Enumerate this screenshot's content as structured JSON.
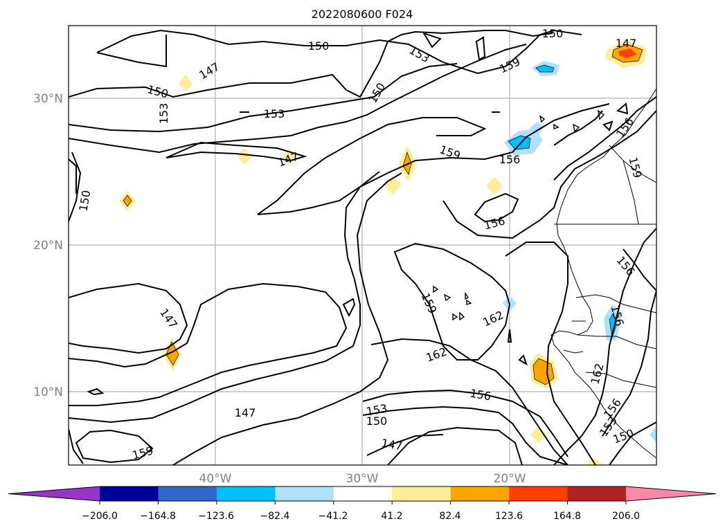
{
  "title": "2022080600 F024",
  "lat_labels": [
    "30°N",
    "20°N",
    "10°N"
  ],
  "lon_labels": [
    "40°W",
    "30°W",
    "20°W"
  ],
  "contour_labels": [
    "150",
    "153",
    "147",
    "150",
    "150",
    "147",
    "150",
    "153",
    "153",
    "147",
    "147",
    "150",
    "159",
    "156",
    "156",
    "156",
    "159",
    "156",
    "147",
    "159",
    "162",
    "162",
    "156",
    "156",
    "153",
    "150",
    "147",
    "153",
    "159",
    "162",
    "156",
    "159",
    "150"
  ],
  "colorbar": {
    "tick_labels": [
      "−206.0",
      "−164.8",
      "−123.6",
      "−82.4",
      "−41.2",
      "41.2",
      "82.4",
      "123.6",
      "164.8",
      "206.0"
    ],
    "colors": [
      "#9933cc",
      "#000099",
      "#3366cc",
      "#00bfff",
      "#b0e0ff",
      "#ffffff",
      "#ffee99",
      "#ffa500",
      "#ff4000",
      "#b22222",
      "#ff88aa"
    ]
  }
}
